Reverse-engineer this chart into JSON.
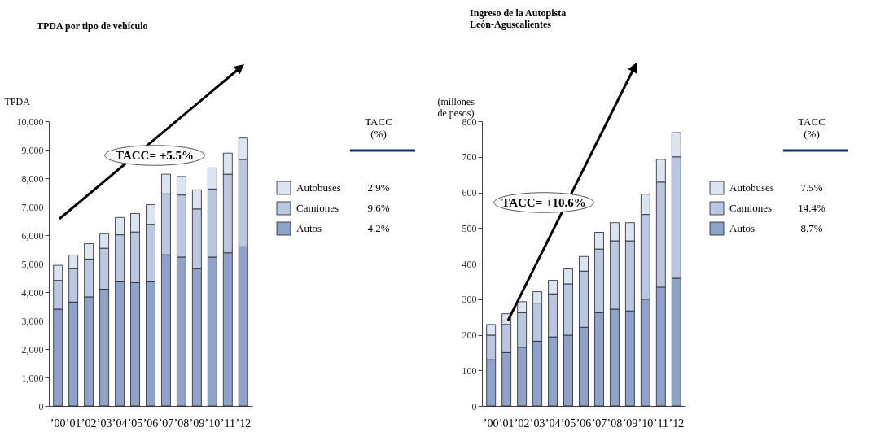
{
  "chart_data": [
    {
      "type": "bar",
      "stacked": true,
      "title": "TPDA por tipo de vehículo",
      "ylabel": "TPDA",
      "categories": [
        "’00",
        "’01",
        "’02",
        "’03",
        "’04",
        "’05",
        "’06",
        "’07",
        "’08",
        "’09",
        "’10",
        "’11",
        "’12"
      ],
      "series": [
        {
          "name": "Autos",
          "color": "#8fa3c8",
          "values": [
            3400,
            3650,
            3830,
            4100,
            4360,
            4330,
            4360,
            5310,
            5230,
            4820,
            5230,
            5380,
            5590
          ]
        },
        {
          "name": "Camiones",
          "color": "#b9c7e0",
          "values": [
            1010,
            1170,
            1330,
            1440,
            1650,
            1780,
            2020,
            2140,
            2180,
            2100,
            2390,
            2760,
            3070
          ]
        },
        {
          "name": "Autobuses",
          "color": "#dde4f1",
          "values": [
            530,
            480,
            540,
            510,
            610,
            650,
            690,
            690,
            650,
            670,
            740,
            740,
            750
          ]
        }
      ],
      "ylim": [
        0,
        10000
      ],
      "yticks": [
        0,
        {
          "value": 1000,
          "label": "1,000"
        },
        {
          "value": 2000,
          "label": "2,000"
        },
        {
          "value": 3000,
          "label": "3,000"
        },
        {
          "value": 4000,
          "label": "4,000"
        },
        {
          "value": 5000,
          "label": "5,000"
        },
        {
          "value": 6000,
          "label": "6,000"
        },
        {
          "value": 7000,
          "label": "7,000"
        },
        {
          "value": 8000,
          "label": "8,000"
        },
        {
          "value": 9000,
          "label": "9,000"
        },
        {
          "value": 10000,
          "label": "10,000"
        }
      ],
      "legend": "right",
      "annotations": [
        "TACC= +5.5%",
        "TACC\n(%)",
        "4.2%",
        "9.6%",
        "2.9%"
      ]
    },
    {
      "type": "bar",
      "stacked": true,
      "title": "Ingreso de la Autopista\nLeón-Aguscalientes",
      "ylabel": "(millones\nde pesos)",
      "categories": [
        "’00",
        "’01",
        "’02",
        "’03",
        "’04",
        "’05",
        "’06",
        "’07",
        "’08",
        "’09",
        "’10",
        "’11",
        "’12"
      ],
      "series": [
        {
          "name": "Autos",
          "color": "#8fa3c8",
          "values": [
            130,
            150,
            165,
            182,
            194,
            199,
            221,
            262,
            272,
            267,
            300,
            334,
            359
          ]
        },
        {
          "name": "Camiones",
          "color": "#b9c7e0",
          "values": [
            69,
            79,
            97,
            107,
            121,
            144,
            158,
            179,
            192,
            197,
            238,
            295,
            341
          ]
        },
        {
          "name": "Autobuses",
          "color": "#dde4f1",
          "values": [
            30,
            30,
            31,
            32,
            38,
            42,
            41,
            47,
            51,
            51,
            57,
            64,
            68
          ]
        }
      ],
      "ylim": [
        0,
        800
      ],
      "yticks": [
        0,
        100,
        200,
        300,
        400,
        500,
        600,
        700,
        800
      ],
      "legend": "right",
      "annotations": [
        "TACC= +10.6%",
        "TACC\n(%)",
        "8.7%",
        "14.4%",
        "7.5%"
      ]
    }
  ]
}
